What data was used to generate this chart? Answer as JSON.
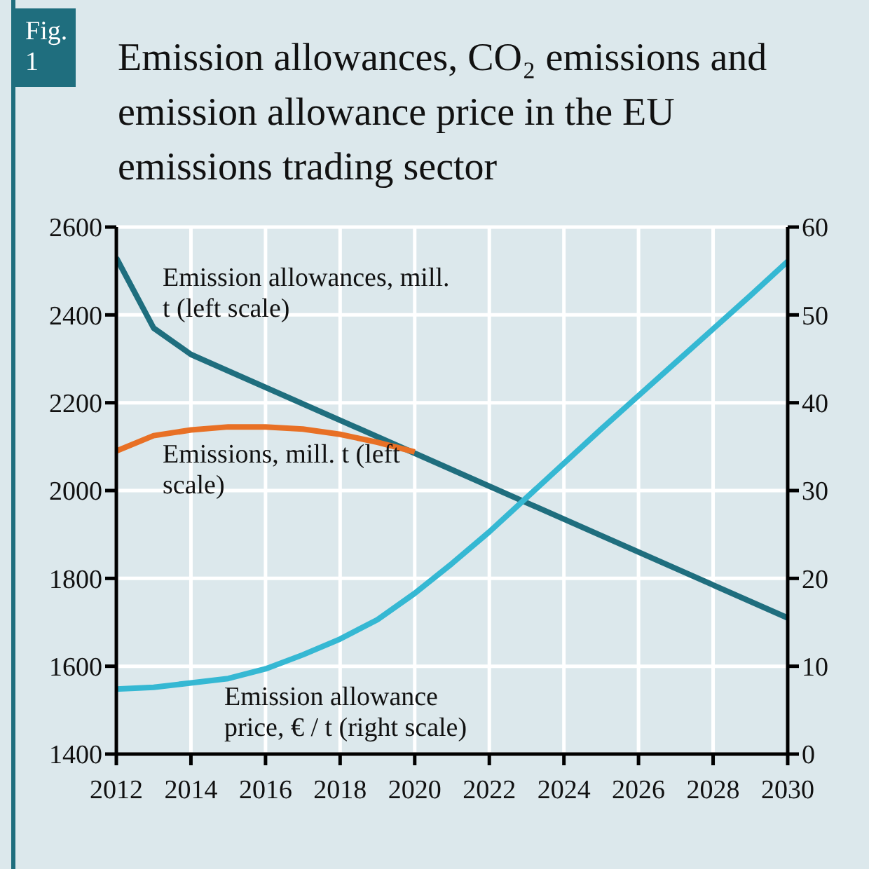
{
  "chart_data": {
    "type": "line",
    "title": "Emission allowances, CO₂ emissions and emission allowance price in the EU emissions trading sector",
    "annotations": [
      "Fig. 1"
    ],
    "series": [
      {
        "name": "Emission allowances, mill. t (left scale)",
        "color": "#1f6e7e",
        "x": [
          2012,
          2013,
          2014,
          2020,
          2030
        ],
        "values": [
          2530,
          2370,
          2310,
          2085,
          1710
        ]
      },
      {
        "name": "Emissions, mill. t (left scale)",
        "color": "#e87025",
        "x": [
          2012,
          2013,
          2014,
          2015,
          2016,
          2017,
          2018,
          2019,
          2020
        ],
        "values": [
          2090,
          2125,
          2138,
          2145,
          2145,
          2140,
          2128,
          2110,
          2088
        ]
      },
      {
        "name": "Emission allowance price, € / t (right scale)",
        "color": "#35b8d3",
        "axis": "y2",
        "x": [
          2012,
          2013,
          2014,
          2015,
          2016,
          2017,
          2018,
          2019,
          2020,
          2021,
          2022,
          2023,
          2024,
          2025,
          2026,
          2027,
          2028,
          2029,
          2030
        ],
        "values": [
          7.4,
          7.6,
          8.1,
          8.6,
          9.7,
          11.3,
          13.1,
          15.3,
          18.3,
          21.7,
          25.3,
          29.2,
          33.1,
          37.0,
          40.8,
          44.6,
          48.4,
          52.2,
          56.1
        ]
      }
    ],
    "xlim": [
      2012,
      2030
    ],
    "xticks": [
      2012,
      2014,
      2016,
      2018,
      2020,
      2022,
      2024,
      2026,
      2028,
      2030
    ],
    "ylim": [
      1400,
      2600
    ],
    "yticks": [
      1400,
      1600,
      1800,
      2000,
      2200,
      2400,
      2600
    ],
    "y2lim": [
      0,
      60
    ],
    "y2ticks": [
      0,
      10,
      20,
      30,
      40,
      50,
      60
    ],
    "grid": true,
    "marker": "none",
    "line_style": "solid"
  }
}
